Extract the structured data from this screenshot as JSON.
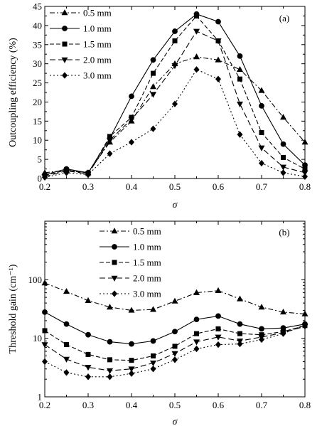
{
  "chart_data": [
    {
      "type": "line",
      "panel_label": "(a)",
      "xlabel": "σ",
      "ylabel": "Outcoupling efficiency (%)",
      "x": [
        0.2,
        0.25,
        0.3,
        0.35,
        0.4,
        0.45,
        0.5,
        0.55,
        0.6,
        0.65,
        0.7,
        0.75,
        0.8
      ],
      "xlim": [
        0.2,
        0.8
      ],
      "ylim": [
        0,
        45
      ],
      "xticks": [
        "0.2",
        "0.3",
        "0.4",
        "0.5",
        "0.6",
        "0.7",
        "0.8"
      ],
      "yticks": [
        "0",
        "5",
        "10",
        "15",
        "20",
        "25",
        "30",
        "35",
        "40",
        "45"
      ],
      "legend_position": "top-left",
      "series": [
        {
          "name": "0.5 mm",
          "marker": "triangle-up",
          "dash": "7,3,2,3",
          "values": [
            1.5,
            2.2,
            1.5,
            9.5,
            15.0,
            24.0,
            30.0,
            31.8,
            31.0,
            28.5,
            23.0,
            16.0,
            9.5
          ]
        },
        {
          "name": "1.0 mm",
          "marker": "circle",
          "dash": "",
          "values": [
            1.0,
            2.5,
            1.5,
            10.5,
            21.5,
            31.0,
            38.5,
            43.0,
            41.0,
            32.0,
            19.0,
            9.0,
            3.5
          ]
        },
        {
          "name": "1.5 mm",
          "marker": "square",
          "dash": "6,3",
          "values": [
            0.8,
            2.2,
            1.3,
            11.0,
            16.0,
            27.5,
            36.0,
            42.5,
            36.0,
            26.0,
            12.0,
            5.5,
            2.5
          ]
        },
        {
          "name": "2.0 mm",
          "marker": "triangle-down",
          "dash": "8,4",
          "values": [
            0.5,
            2.0,
            1.2,
            10.0,
            15.5,
            22.0,
            29.5,
            38.5,
            36.0,
            19.5,
            8.0,
            3.0,
            1.5
          ]
        },
        {
          "name": "3.0 mm",
          "marker": "diamond",
          "dash": "2,3",
          "values": [
            0.3,
            1.5,
            1.0,
            6.5,
            9.5,
            13.0,
            19.5,
            28.5,
            26.0,
            11.5,
            4.0,
            1.5,
            0.5
          ]
        }
      ]
    },
    {
      "type": "line",
      "panel_label": "(b)",
      "xlabel": "σ",
      "ylabel": "Threshold gain (cm⁻¹)",
      "yscale": "log",
      "x": [
        0.2,
        0.25,
        0.3,
        0.35,
        0.4,
        0.45,
        0.5,
        0.55,
        0.6,
        0.65,
        0.7,
        0.75,
        0.8
      ],
      "xlim": [
        0.2,
        0.8
      ],
      "ylim": [
        1,
        1000
      ],
      "xticks": [
        "0.2",
        "0.3",
        "0.4",
        "0.5",
        "0.6",
        "0.7",
        "0.8"
      ],
      "yticks": [
        "1",
        "10",
        "100"
      ],
      "legend_position": "top-center",
      "series": [
        {
          "name": "0.5 mm",
          "marker": "triangle-up",
          "dash": "7,3,2,3",
          "values": [
            88,
            63,
            44,
            34,
            30,
            31,
            43,
            60,
            65,
            47,
            34,
            28,
            26
          ]
        },
        {
          "name": "1.0 mm",
          "marker": "circle",
          "dash": "",
          "values": [
            28,
            17.5,
            11.5,
            8.7,
            8.0,
            9.0,
            13,
            21,
            24,
            17.5,
            14.5,
            15,
            17.5
          ]
        },
        {
          "name": "1.5 mm",
          "marker": "square",
          "dash": "6,3",
          "values": [
            13.5,
            7.8,
            5.3,
            4.3,
            4.2,
            5.0,
            7.3,
            12,
            14.5,
            12,
            11.5,
            13,
            16.5
          ]
        },
        {
          "name": "2.0 mm",
          "marker": "triangle-down",
          "dash": "8,4",
          "values": [
            7.8,
            4.4,
            3.2,
            2.8,
            3.0,
            3.8,
            5.5,
            8.7,
            10.5,
            9.0,
            10.5,
            12.5,
            16
          ]
        },
        {
          "name": "3.0 mm",
          "marker": "diamond",
          "dash": "2,3",
          "values": [
            4.0,
            2.6,
            2.2,
            2.2,
            2.5,
            3.0,
            4.3,
            6.6,
            7.8,
            8.0,
            9.5,
            12,
            17
          ]
        }
      ]
    }
  ]
}
